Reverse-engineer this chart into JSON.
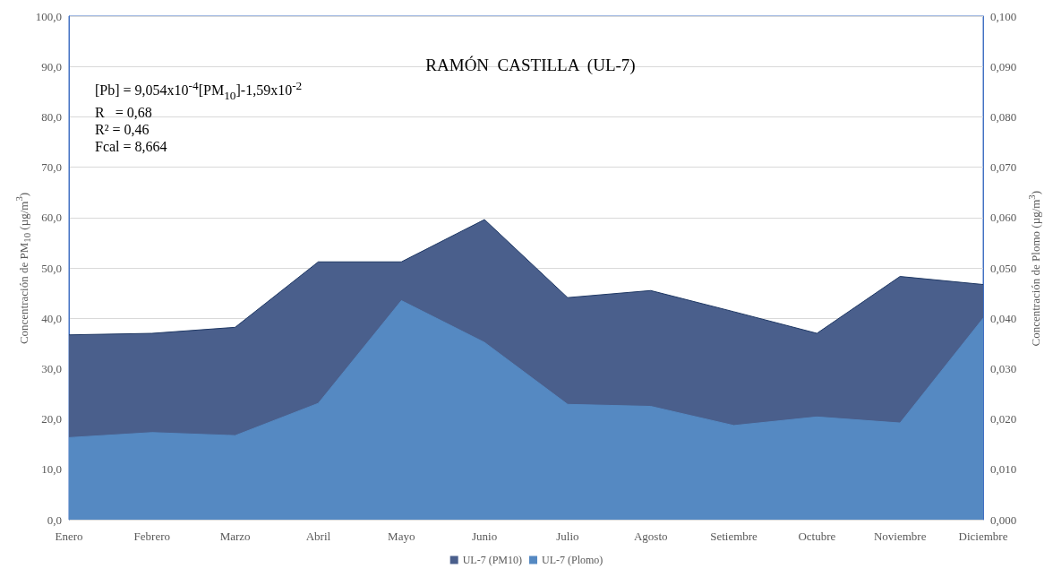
{
  "chart_data": {
    "type": "area",
    "title": "RAMÓN  CASTILLA  (UL-7)",
    "ylabel": "Concentración de PM$_{10}$ (µg/m$^{3}$)",
    "y2label": "Concentración de Plomo (µg/m$^{3}$)",
    "categories": [
      "Enero",
      "Febrero",
      "Marzo",
      "Abril",
      "Mayo",
      "Junio",
      "Julio",
      "Agosto",
      "Setiembre",
      "Octubre",
      "Noviembre",
      "Diciembre"
    ],
    "series": [
      {
        "name": "UL-7 (PM10)",
        "color": "#4a5f8c",
        "values": [
          36.7,
          37.0,
          38.2,
          51.2,
          51.2,
          59.6,
          44.1,
          45.5,
          41.3,
          37.0,
          48.3,
          46.7
        ]
      },
      {
        "name": "UL-7 (Plomo)",
        "color": "#5589c2",
        "axis": "y2",
        "values": [
          0.0163,
          0.0173,
          0.0167,
          0.0231,
          0.0435,
          0.0352,
          0.0229,
          0.0225,
          0.0187,
          0.0204,
          0.0192,
          0.04
        ]
      }
    ],
    "ylim": [
      0,
      100
    ],
    "yticks": [
      {
        "value": 0,
        "label": "0,0"
      },
      {
        "value": 10,
        "label": "10,0"
      },
      {
        "value": 20,
        "label": "20,0"
      },
      {
        "value": 30,
        "label": "30,0"
      },
      {
        "value": 40,
        "label": "40,0"
      },
      {
        "value": 50,
        "label": "50,0"
      },
      {
        "value": 60,
        "label": "60,0"
      },
      {
        "value": 70,
        "label": "70,0"
      },
      {
        "value": 80,
        "label": "80,0"
      },
      {
        "value": 90,
        "label": "90,0"
      },
      {
        "value": 100,
        "label": "100,0"
      }
    ],
    "y2lim": [
      0,
      0.1
    ],
    "y2ticks": [
      {
        "value": 0,
        "label": "0,000"
      },
      {
        "value": 0.01,
        "label": "0,010"
      },
      {
        "value": 0.02,
        "label": "0,020"
      },
      {
        "value": 0.03,
        "label": "0,030"
      },
      {
        "value": 0.04,
        "label": "0,040"
      },
      {
        "value": 0.05,
        "label": "0,050"
      },
      {
        "value": 0.06,
        "label": "0,060"
      },
      {
        "value": 0.07,
        "label": "0,070"
      },
      {
        "value": 0.08,
        "label": "0,080"
      },
      {
        "value": 0.09,
        "label": "0,090"
      },
      {
        "value": 0.1,
        "label": "0,100"
      }
    ],
    "annotations": [
      "[Pb] = 9,054x10$^{-4}$[PM$_{10}$]-1,59x10$^{-2}$",
      "R   = 0,68",
      "R² = 0,46",
      "Fcal = 8,664"
    ],
    "grid": "y",
    "legend": "bottom"
  }
}
